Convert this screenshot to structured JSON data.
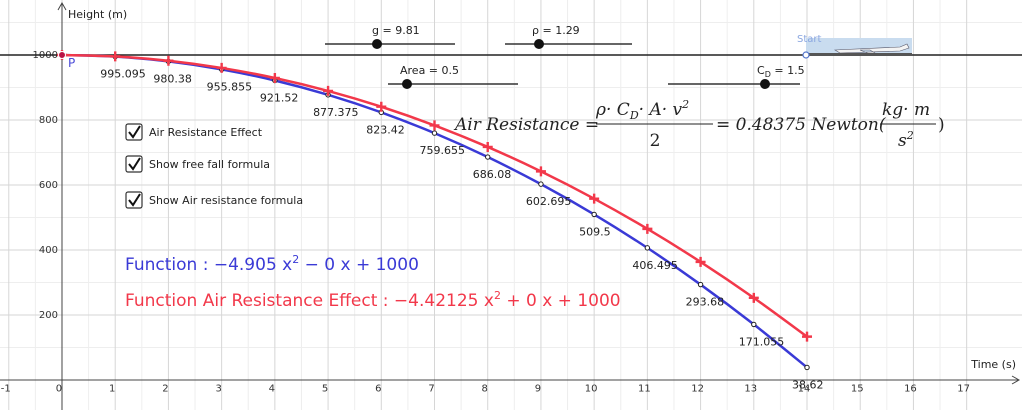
{
  "chart_data": {
    "type": "line",
    "x_label": "Time (s)",
    "y_label": "Height (m)",
    "xlim": [
      -1.165,
      18.04
    ],
    "ylim": [
      -92.3,
      1169.2
    ],
    "xticks": [
      -1,
      0,
      1,
      2,
      3,
      4,
      5,
      6,
      7,
      8,
      9,
      10,
      11,
      12,
      13,
      14,
      15,
      16,
      17
    ],
    "yticks": [
      200,
      400,
      600,
      800,
      1000
    ],
    "grid": true,
    "x": [
      0,
      1,
      2,
      3,
      4,
      5,
      6,
      7,
      8,
      9,
      10,
      11,
      12,
      13,
      14
    ],
    "series": [
      {
        "name": "Function : −4.905 x",
        "name_sup": "2",
        "name_rest": " − 0 x + 1000",
        "color": "#3a3ad6",
        "marker": "circle",
        "values": [
          1000,
          995.095,
          980.38,
          955.855,
          921.52,
          877.375,
          823.42,
          759.655,
          686.08,
          602.695,
          509.5,
          406.495,
          293.68,
          171.055,
          38.62
        ]
      },
      {
        "name": "Function Air Resistance Effect : −4.42125 x",
        "name_sup": "2",
        "name_rest": " + 0 x + 1000",
        "color": "#f2384a",
        "marker": "cross",
        "values": [
          1000,
          995.57875,
          982.315,
          960.20875,
          929.26,
          889.46875,
          840.835,
          783.35875,
          717.04,
          641.87875,
          557.875,
          465.02875,
          363.34,
          252.80875,
          133.435
        ]
      }
    ],
    "point_label": "P",
    "start_label": "Start",
    "sliders": [
      {
        "label": "g = 9.81"
      },
      {
        "label": "ρ = 1.29"
      },
      {
        "label": "Area = 0.5"
      },
      {
        "label_parts": [
          "C",
          "D",
          " = 1.5"
        ]
      }
    ],
    "checkboxes": [
      "Air Resistance Effect",
      "Show free fall formula",
      "Show Air resistance formula"
    ],
    "air_formula": {
      "lhs": "Air Resistance =",
      "num": [
        "ρ· C",
        "D",
        "· A· v",
        "2"
      ],
      "den": "2",
      "result": "= 0.48375 Newton(",
      "unit_num": "kg· m",
      "unit_den": [
        "s",
        "2"
      ],
      "close": ")"
    }
  }
}
